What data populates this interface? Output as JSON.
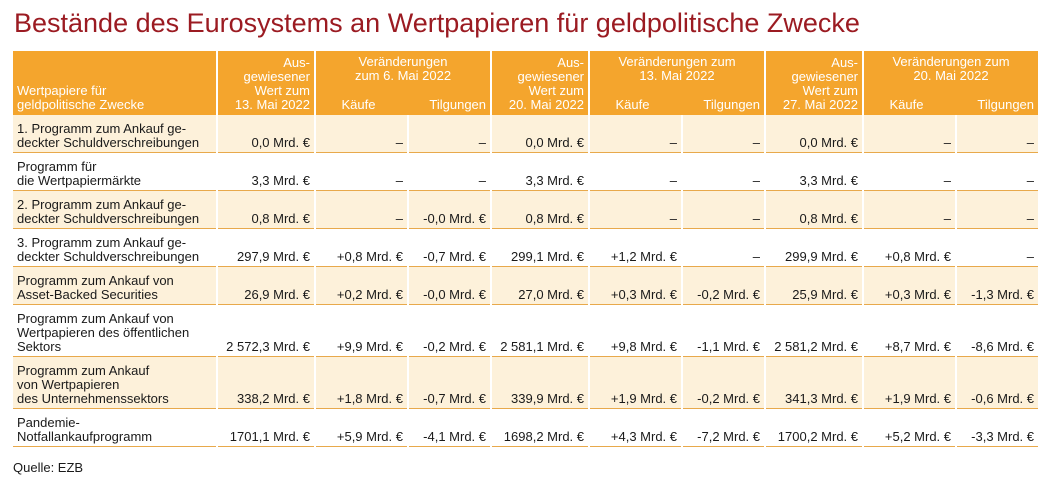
{
  "title": "Bestände des Eurosystems an Wertpapieren für geldpolitische Zwecke",
  "header": {
    "first": [
      "Wertpapiere für",
      "geldpolitische Zwecke"
    ],
    "ausgewiesen_1": [
      "Aus-",
      "gewiesener",
      "Wert zum",
      "13. Mai 2022"
    ],
    "veraenderung_1": [
      "Veränderungen",
      "zum 6. Mai 2022"
    ],
    "ausgewiesen_2": [
      "Aus-",
      "gewiesener",
      "Wert zum",
      "20. Mai 2022"
    ],
    "veraenderung_2": [
      "Veränderungen zum",
      "13. Mai 2022"
    ],
    "ausgewiesen_3": [
      "Aus-",
      "gewiesener",
      "Wert zum",
      "27. Mai 2022"
    ],
    "veraenderung_3": [
      "Veränderungen zum",
      "20. Mai 2022"
    ],
    "kaeufe": "Käufe",
    "tilgungen": "Tilgungen"
  },
  "rows": [
    {
      "label": [
        "1. Programm zum Ankauf ge-",
        "deckter Schuldverschreibungen"
      ],
      "values": [
        "0,0 Mrd. €",
        "–",
        "–",
        "0,0 Mrd. €",
        "–",
        "–",
        "0,0 Mrd. €",
        "–",
        "–"
      ]
    },
    {
      "label": [
        "Programm für",
        "die Wertpapiermärkte"
      ],
      "values": [
        "3,3 Mrd. €",
        "–",
        "–",
        "3,3 Mrd. €",
        "–",
        "–",
        "3,3 Mrd. €",
        "–",
        "–"
      ]
    },
    {
      "label": [
        "2. Programm zum Ankauf ge-",
        "deckter Schuldverschreibungen"
      ],
      "values": [
        "0,8 Mrd. €",
        "–",
        "-0,0 Mrd. €",
        "0,8 Mrd. €",
        "–",
        "–",
        "0,8 Mrd. €",
        "–",
        "–"
      ]
    },
    {
      "label": [
        "3. Programm zum Ankauf ge-",
        "deckter Schuldverschreibungen"
      ],
      "values": [
        "297,9 Mrd. €",
        "+0,8 Mrd. €",
        "-0,7 Mrd. €",
        "299,1 Mrd. €",
        "+1,2 Mrd. €",
        "–",
        "299,9 Mrd. €",
        "+0,8 Mrd. €",
        "–"
      ]
    },
    {
      "label": [
        "Programm zum Ankauf von",
        "Asset-Backed Securities"
      ],
      "values": [
        "26,9 Mrd. €",
        "+0,2 Mrd. €",
        "-0,0 Mrd. €",
        "27,0 Mrd. €",
        "+0,3 Mrd. €",
        "-0,2 Mrd. €",
        "25,9 Mrd. €",
        "+0,3 Mrd. €",
        "-1,3 Mrd. €"
      ]
    },
    {
      "label": [
        "Programm zum Ankauf von",
        "Wertpapieren des öffentlichen",
        "Sektors"
      ],
      "values": [
        "2 572,3 Mrd. €",
        "+9,9 Mrd. €",
        "-0,2 Mrd. €",
        "2 581,1 Mrd. €",
        "+9,8 Mrd. €",
        "-1,1 Mrd. €",
        "2 581,2 Mrd. €",
        "+8,7 Mrd. €",
        "-8,6 Mrd. €"
      ]
    },
    {
      "label": [
        "Programm zum Ankauf",
        "von Wertpapieren",
        "des Unternehmenssektors"
      ],
      "values": [
        "338,2 Mrd. €",
        "+1,8 Mrd. €",
        "-0,7 Mrd. €",
        "339,9 Mrd. €",
        "+1,9 Mrd. €",
        "-0,2 Mrd. €",
        "341,3 Mrd. €",
        "+1,9 Mrd. €",
        "-0,6 Mrd. €"
      ]
    },
    {
      "label": [
        "Pandemie-",
        "Notfallankaufprogramm"
      ],
      "values": [
        "1701,1 Mrd. €",
        "+5,9 Mrd. €",
        "-4,1 Mrd. €",
        "1698,2 Mrd. €",
        "+4,3 Mrd. €",
        "-7,2 Mrd. €",
        "1700,2 Mrd. €",
        "+5,2 Mrd. €",
        "-3,3 Mrd. €"
      ]
    }
  ],
  "source": "Quelle: EZB",
  "colors": {
    "title": "#9b1b22",
    "header_bg": "#f4a52d",
    "row_tint": "#fdf1da",
    "rule": "#e8a94b"
  }
}
